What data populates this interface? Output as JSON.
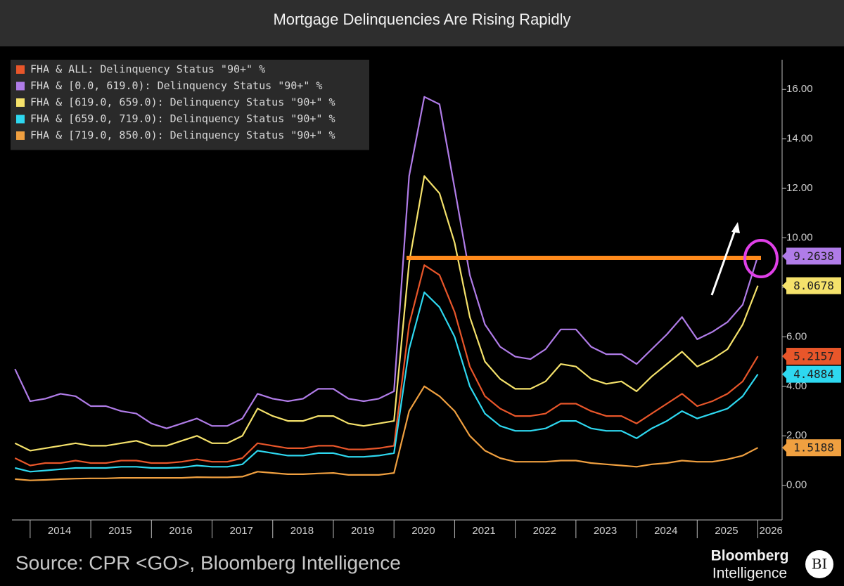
{
  "chart_data": {
    "type": "line",
    "title": "Mortgage Delinquencies Are Rising Rapidly",
    "source": "Source: CPR <GO>, Bloomberg Intelligence",
    "brand": {
      "name": "Bloomberg",
      "unit": "Intelligence",
      "badge": "BI"
    },
    "x": [
      2013.75,
      2014,
      2014.25,
      2014.5,
      2014.75,
      2015,
      2015.25,
      2015.5,
      2015.75,
      2016,
      2016.25,
      2016.5,
      2016.75,
      2017,
      2017.25,
      2017.5,
      2017.75,
      2018,
      2018.25,
      2018.5,
      2018.75,
      2019,
      2019.25,
      2019.5,
      2019.75,
      2020,
      2020.25,
      2020.5,
      2020.75,
      2021,
      2021.25,
      2021.5,
      2021.75,
      2022,
      2022.25,
      2022.5,
      2022.75,
      2023,
      2023.25,
      2023.5,
      2023.75,
      2024,
      2024.25,
      2024.5,
      2024.75,
      2025,
      2025.25,
      2025.5,
      2025.75,
      2026
    ],
    "xlim": [
      2013.7,
      2026.4
    ],
    "xticks": [
      2014,
      2015,
      2016,
      2017,
      2018,
      2019,
      2020,
      2021,
      2022,
      2023,
      2024,
      2025,
      2026
    ],
    "ylim": [
      -1.4,
      17.2
    ],
    "yticks": [
      {
        "value": 0,
        "label": "0.00"
      },
      {
        "value": 2,
        "label": "2.00"
      },
      {
        "value": 4,
        "label": "4.00"
      },
      {
        "value": 6,
        "label": "6.00"
      },
      {
        "value": 8,
        "label": "8.00"
      },
      {
        "value": 10,
        "label": "10.00"
      },
      {
        "value": 12,
        "label": "12.00"
      },
      {
        "value": 14,
        "label": "14.00"
      },
      {
        "value": 16,
        "label": "16.00"
      }
    ],
    "legend": "upper left",
    "series": [
      {
        "name": "FHA & ALL: Delinquency Status \"90+\" %",
        "color": "#e8562a",
        "values": [
          1.1,
          0.8,
          0.9,
          0.9,
          1.0,
          0.9,
          0.9,
          1.0,
          1.0,
          0.9,
          0.9,
          0.95,
          1.05,
          0.95,
          0.95,
          1.1,
          1.7,
          1.6,
          1.5,
          1.5,
          1.6,
          1.6,
          1.45,
          1.45,
          1.5,
          1.6,
          6.5,
          8.9,
          8.5,
          7.0,
          4.8,
          3.6,
          3.1,
          2.8,
          2.8,
          2.9,
          3.3,
          3.3,
          3.0,
          2.8,
          2.8,
          2.5,
          2.9,
          3.3,
          3.7,
          3.2,
          3.4,
          3.7,
          4.2,
          5.2157
        ]
      },
      {
        "name": "FHA & [0.0, 619.0): Delinquency Status \"90+\" %",
        "color": "#b07ce8",
        "values": [
          4.7,
          3.4,
          3.5,
          3.7,
          3.6,
          3.2,
          3.2,
          3.0,
          2.9,
          2.5,
          2.3,
          2.5,
          2.7,
          2.4,
          2.4,
          2.7,
          3.7,
          3.5,
          3.4,
          3.5,
          3.9,
          3.9,
          3.5,
          3.4,
          3.5,
          3.8,
          12.5,
          15.7,
          15.4,
          12.0,
          8.5,
          6.5,
          5.6,
          5.2,
          5.1,
          5.5,
          6.3,
          6.3,
          5.6,
          5.3,
          5.3,
          4.9,
          5.5,
          6.1,
          6.8,
          5.9,
          6.2,
          6.6,
          7.3,
          9.2638
        ]
      },
      {
        "name": "FHA & [619.0, 659.0): Delinquency Status \"90+\" %",
        "color": "#f5e26b",
        "values": [
          1.7,
          1.4,
          1.5,
          1.6,
          1.7,
          1.6,
          1.6,
          1.7,
          1.8,
          1.6,
          1.6,
          1.8,
          2.0,
          1.7,
          1.7,
          2.0,
          3.1,
          2.8,
          2.6,
          2.6,
          2.8,
          2.8,
          2.5,
          2.4,
          2.5,
          2.6,
          9.0,
          12.5,
          11.8,
          9.8,
          6.8,
          5.0,
          4.3,
          3.9,
          3.9,
          4.2,
          4.9,
          4.8,
          4.3,
          4.1,
          4.2,
          3.8,
          4.4,
          4.9,
          5.4,
          4.8,
          5.1,
          5.5,
          6.5,
          8.0678
        ]
      },
      {
        "name": "FHA & [659.0, 719.0): Delinquency Status \"90+\" %",
        "color": "#2ed8f0",
        "values": [
          0.7,
          0.55,
          0.6,
          0.65,
          0.7,
          0.7,
          0.7,
          0.75,
          0.75,
          0.7,
          0.7,
          0.72,
          0.8,
          0.75,
          0.75,
          0.85,
          1.4,
          1.3,
          1.2,
          1.2,
          1.3,
          1.3,
          1.15,
          1.15,
          1.2,
          1.3,
          5.5,
          7.8,
          7.2,
          6.0,
          4.0,
          2.9,
          2.4,
          2.2,
          2.2,
          2.3,
          2.6,
          2.6,
          2.3,
          2.2,
          2.2,
          1.9,
          2.3,
          2.6,
          3.0,
          2.7,
          2.9,
          3.1,
          3.6,
          4.4884
        ]
      },
      {
        "name": "FHA & [719.0, 850.0): Delinquency Status \"90+\" %",
        "color": "#f0a040",
        "values": [
          0.25,
          0.2,
          0.22,
          0.25,
          0.27,
          0.28,
          0.28,
          0.3,
          0.3,
          0.3,
          0.3,
          0.3,
          0.33,
          0.32,
          0.32,
          0.35,
          0.55,
          0.5,
          0.45,
          0.45,
          0.48,
          0.5,
          0.42,
          0.42,
          0.42,
          0.5,
          3.0,
          4.0,
          3.6,
          3.0,
          2.0,
          1.4,
          1.1,
          0.95,
          0.95,
          0.95,
          1.0,
          1.0,
          0.9,
          0.85,
          0.8,
          0.75,
          0.85,
          0.9,
          1.0,
          0.95,
          0.95,
          1.05,
          1.2,
          1.5188
        ]
      }
    ]
  }
}
